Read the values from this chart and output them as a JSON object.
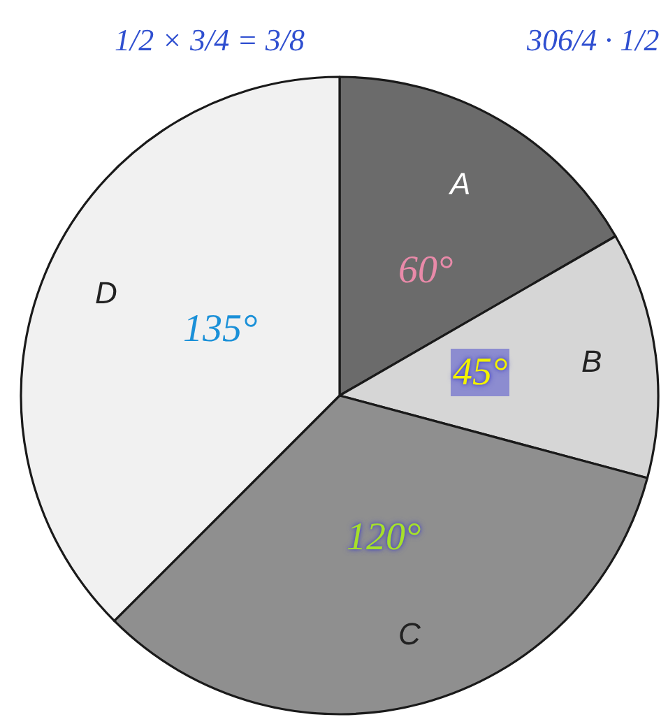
{
  "chart_data": {
    "type": "pie",
    "categories": [
      "A",
      "B",
      "C",
      "D"
    ],
    "values": [
      60,
      45,
      120,
      135
    ],
    "colors": [
      "#6b6b6b",
      "#d6d6d6",
      "#8f8f8f",
      "#f1f1f1"
    ],
    "value_labels": [
      "60°",
      "45°",
      "120°",
      "135°"
    ],
    "annotations": [
      "1/2 × 3/4 = 3/8",
      "306/4 · 1/2"
    ],
    "legend": false
  }
}
